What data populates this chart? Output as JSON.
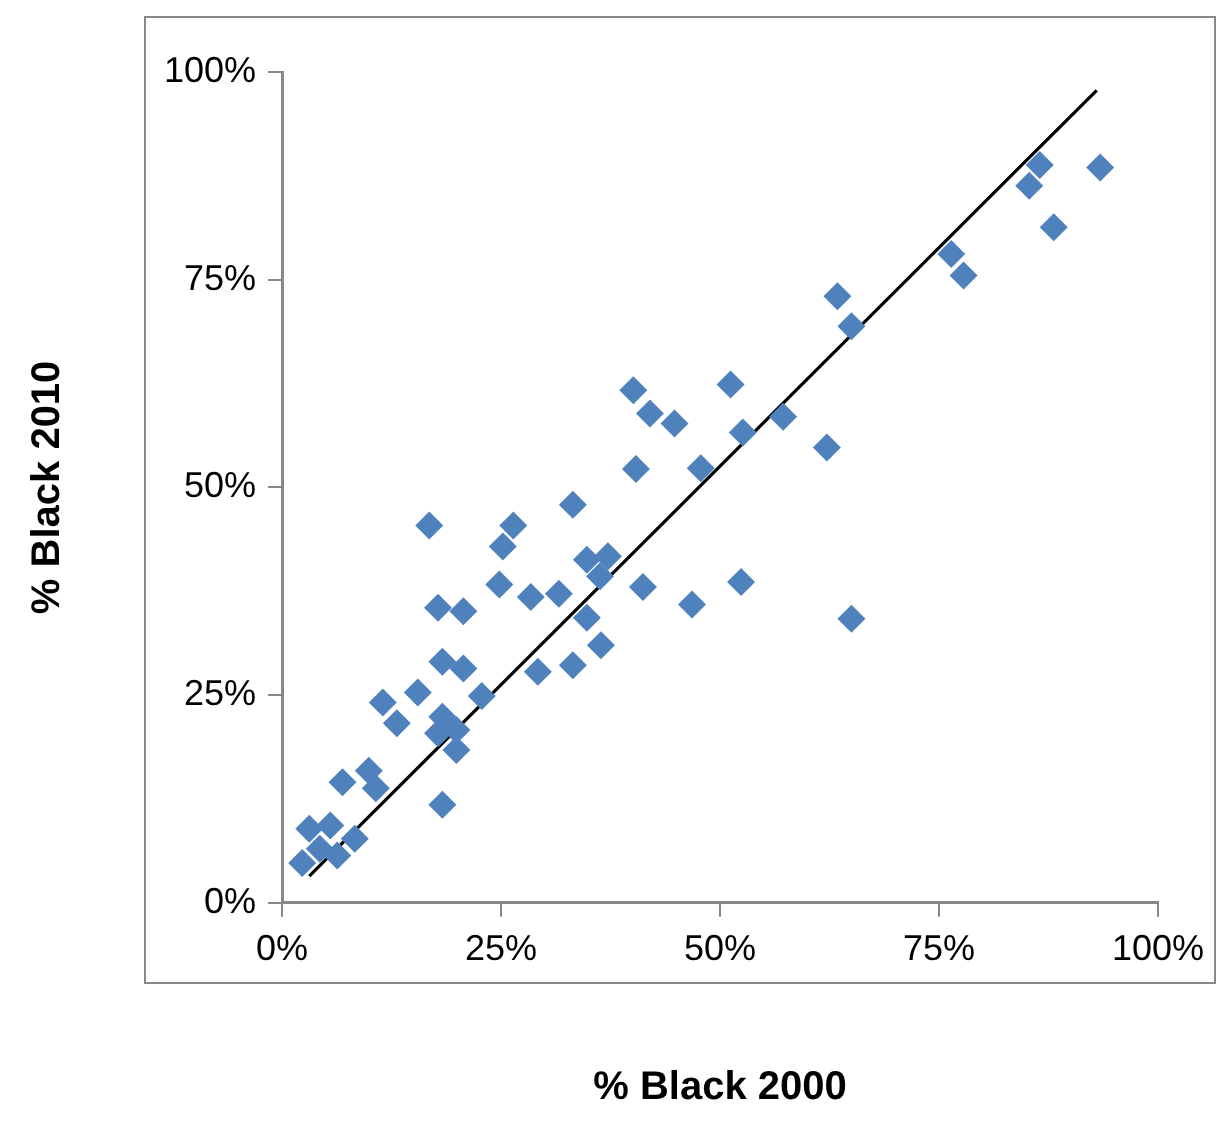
{
  "chart_data": {
    "type": "scatter",
    "xlabel": "% Black 2000",
    "ylabel": "% Black 2010",
    "xlim": [
      0,
      100
    ],
    "ylim": [
      0,
      100
    ],
    "xticks": [
      {
        "value": 0,
        "label": "0%"
      },
      {
        "value": 25,
        "label": "25%"
      },
      {
        "value": 50,
        "label": "50%"
      },
      {
        "value": 75,
        "label": "75%"
      },
      {
        "value": 100,
        "label": "100%"
      }
    ],
    "yticks": [
      {
        "value": 0,
        "label": "0%"
      },
      {
        "value": 25,
        "label": "25%"
      },
      {
        "value": 50,
        "label": "50%"
      },
      {
        "value": 75,
        "label": "75%"
      },
      {
        "value": 100,
        "label": "100%"
      }
    ],
    "grid": false,
    "legend": false,
    "marker": "diamond",
    "series": [
      {
        "color": "#4f81bd",
        "x": [
          85.3,
          86.5,
          93.4,
          88.1,
          76.4,
          77.8,
          63.4,
          65.0,
          57.2,
          62.2,
          40.1,
          42.0,
          44.8,
          51.2,
          52.6,
          40.4,
          47.8,
          33.2,
          36.3,
          52.4,
          65.0,
          16.8,
          26.4,
          25.2,
          24.8,
          17.8,
          20.7,
          28.4,
          31.6,
          34.8,
          37.2,
          41.2,
          46.8,
          34.8,
          36.4,
          29.2,
          33.2,
          18.3,
          20.7,
          22.8,
          11.5,
          15.5,
          13.1,
          18.3,
          19.9,
          17.8,
          19.9,
          6.9,
          9.9,
          10.7,
          18.3,
          3.1,
          5.5,
          2.3,
          4.3,
          6.3,
          8.3
        ],
        "values": [
          86.3,
          88.8,
          88.5,
          81.3,
          78.1,
          75.5,
          73.0,
          69.4,
          58.5,
          54.8,
          61.7,
          58.9,
          57.7,
          62.4,
          56.6,
          52.2,
          52.3,
          47.9,
          39.3,
          38.6,
          34.2,
          45.4,
          45.4,
          42.9,
          38.3,
          35.5,
          35.1,
          36.8,
          37.2,
          41.3,
          41.7,
          38.0,
          35.9,
          34.3,
          31.0,
          27.8,
          28.6,
          29.0,
          28.2,
          24.9,
          24.1,
          25.3,
          21.6,
          22.4,
          20.8,
          20.4,
          18.4,
          14.5,
          15.9,
          13.8,
          11.8,
          8.9,
          9.3,
          4.8,
          6.5,
          5.7,
          7.7
        ]
      },
      {
        "type": "line",
        "color": "#000000",
        "marker": "none",
        "x": [
          3.1,
          93.0
        ],
        "values": [
          3.2,
          97.8
        ]
      }
    ]
  }
}
